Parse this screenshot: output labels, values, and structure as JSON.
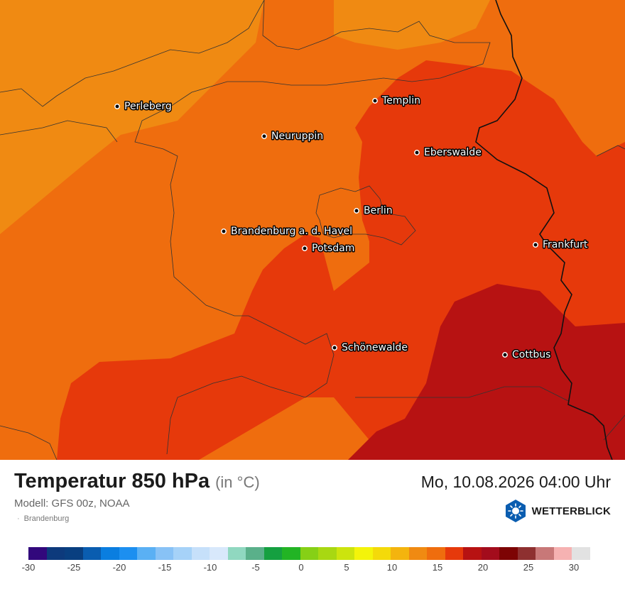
{
  "map": {
    "cities": [
      {
        "id": "perleberg",
        "name": "Perleberg"
      },
      {
        "id": "templin",
        "name": "Templin"
      },
      {
        "id": "neuruppin",
        "name": "Neuruppin"
      },
      {
        "id": "eberswalde",
        "name": "Eberswalde"
      },
      {
        "id": "berlin",
        "name": "Berlin"
      },
      {
        "id": "brandenburg",
        "name": "Brandenburg a. d. Havel"
      },
      {
        "id": "potsdam",
        "name": "Potsdam"
      },
      {
        "id": "frankfurt",
        "name": "Frankfurt"
      },
      {
        "id": "schoenewalde",
        "name": "Schönewalde"
      },
      {
        "id": "cottbus",
        "name": "Cottbus"
      }
    ],
    "temperature_bands_colors": [
      "#f08a12",
      "#ef6d0e",
      "#e6390b",
      "#b71212"
    ]
  },
  "footer": {
    "title": "Temperatur 850 hPa",
    "unit": "(in °C)",
    "model": "Modell: GFS 00z, NOAA",
    "region": "Brandenburg",
    "datetime": "Mo, 10.08.2026 04:00 Uhr",
    "brand": "WETTERBLICK",
    "brand_icon": "sun-icon"
  },
  "legend": {
    "colors": [
      "#32087c",
      "#0d3a7c",
      "#093f80",
      "#0a5db0",
      "#0a7ee0",
      "#1c8ff0",
      "#5ab0f4",
      "#88c2f6",
      "#a6d2f8",
      "#c6e0fa",
      "#d8e8fb",
      "#90d8c0",
      "#5ab08a",
      "#15a040",
      "#22b424",
      "#86d016",
      "#a8d812",
      "#cce40e",
      "#f4f40a",
      "#f4da0a",
      "#f4b40e",
      "#f08a12",
      "#ef6d0e",
      "#e6390b",
      "#b71212",
      "#a30c1c",
      "#7d0404",
      "#8e3030",
      "#c87878",
      "#f6b2b2",
      "#e2e2e2"
    ],
    "ticks": [
      "-30",
      "-25",
      "-20",
      "-15",
      "-10",
      "-5",
      "0",
      "5",
      "10",
      "15",
      "20",
      "25",
      "30"
    ]
  }
}
